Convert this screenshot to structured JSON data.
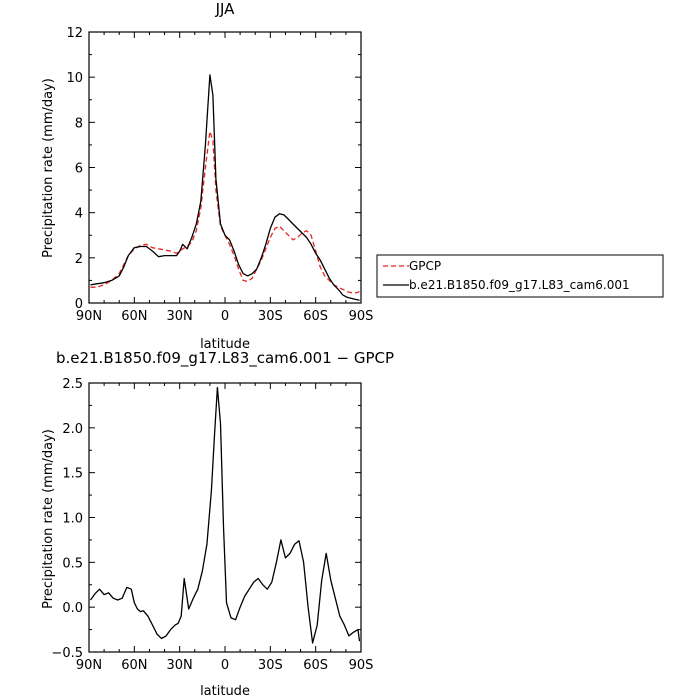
{
  "chart_data": [
    {
      "type": "line",
      "title": "JJA",
      "xlabel": "latitude",
      "ylabel": "Precipitation rate (mm/day)",
      "xlim": [
        90,
        -90
      ],
      "ylim": [
        0,
        12
      ],
      "xticks": [
        90,
        60,
        30,
        0,
        -30,
        -60,
        -90
      ],
      "xtick_labels": [
        "90N",
        "60N",
        "30N",
        "0",
        "30S",
        "60S",
        "90S"
      ],
      "yticks": [
        0,
        2,
        4,
        6,
        8,
        10,
        12
      ],
      "ytick_labels": [
        "0",
        "2",
        "4",
        "6",
        "8",
        "10",
        "12"
      ],
      "legend": "right",
      "series": [
        {
          "name": "GPCP",
          "color": "#e8251f",
          "dash": "dashed",
          "x": [
            89,
            85,
            80,
            75,
            70,
            67,
            64,
            60,
            56,
            52,
            48,
            44,
            40,
            36,
            32,
            30,
            28,
            25,
            22,
            19,
            16,
            13,
            10,
            8,
            6,
            3,
            0,
            -3,
            -6,
            -9,
            -12,
            -15,
            -18,
            -21,
            -24,
            -27,
            -30,
            -33,
            -36,
            -39,
            -42,
            -45,
            -48,
            -51,
            -54,
            -57,
            -60,
            -63,
            -66,
            -69,
            -72,
            -75,
            -78,
            -81,
            -84,
            -87,
            -89
          ],
          "y": [
            0.7,
            0.7,
            0.8,
            1.0,
            1.3,
            1.7,
            2.1,
            2.4,
            2.55,
            2.6,
            2.45,
            2.4,
            2.35,
            2.3,
            2.2,
            2.3,
            2.4,
            2.5,
            2.7,
            3.2,
            4.2,
            6.0,
            7.6,
            7.2,
            5.0,
            3.4,
            3.0,
            2.6,
            2.1,
            1.5,
            1.0,
            0.95,
            1.1,
            1.5,
            1.9,
            2.4,
            2.9,
            3.3,
            3.4,
            3.2,
            3.0,
            2.8,
            2.9,
            3.1,
            3.2,
            3.0,
            2.3,
            1.6,
            1.2,
            1.0,
            0.8,
            0.7,
            0.6,
            0.5,
            0.45,
            0.45,
            0.5
          ]
        },
        {
          "name": "b.e21.B1850.f09_g17.L83_cam6.001",
          "color": "#000000",
          "dash": "solid",
          "x": [
            89,
            85,
            80,
            75,
            70,
            67,
            64,
            60,
            56,
            52,
            48,
            44,
            40,
            36,
            32,
            30,
            28,
            25,
            22,
            19,
            16,
            13,
            10,
            8,
            6,
            3,
            0,
            -3,
            -6,
            -9,
            -12,
            -15,
            -18,
            -21,
            -24,
            -27,
            -30,
            -33,
            -36,
            -39,
            -42,
            -45,
            -48,
            -51,
            -54,
            -57,
            -60,
            -63,
            -66,
            -69,
            -72,
            -75,
            -78,
            -81,
            -84,
            -87,
            -89
          ],
          "y": [
            0.8,
            0.85,
            0.9,
            1.0,
            1.2,
            1.6,
            2.1,
            2.45,
            2.5,
            2.5,
            2.3,
            2.05,
            2.1,
            2.1,
            2.1,
            2.3,
            2.6,
            2.4,
            2.9,
            3.5,
            4.5,
            7.0,
            10.1,
            9.2,
            5.5,
            3.5,
            3.0,
            2.8,
            2.3,
            1.7,
            1.3,
            1.2,
            1.3,
            1.5,
            2.0,
            2.6,
            3.3,
            3.8,
            3.95,
            3.9,
            3.7,
            3.5,
            3.3,
            3.1,
            2.9,
            2.6,
            2.2,
            1.9,
            1.5,
            1.1,
            0.8,
            0.6,
            0.35,
            0.25,
            0.2,
            0.15,
            0.12
          ]
        }
      ]
    },
    {
      "type": "line",
      "title": "b.e21.B1850.f09_g17.L83_cam6.001 − GPCP",
      "xlabel": "latitude",
      "ylabel": "Precipitation rate (mm/day)",
      "xlim": [
        90,
        -90
      ],
      "ylim": [
        -0.5,
        2.5
      ],
      "xticks": [
        90,
        60,
        30,
        0,
        -30,
        -60,
        -90
      ],
      "xtick_labels": [
        "90N",
        "60N",
        "30N",
        "0",
        "30S",
        "60S",
        "90S"
      ],
      "yticks": [
        -0.5,
        0.0,
        0.5,
        1.0,
        1.5,
        2.0,
        2.5
      ],
      "ytick_labels": [
        "−0.5",
        "0.0",
        "0.5",
        "1.0",
        "1.5",
        "2.0",
        "2.5"
      ],
      "series": [
        {
          "color": "#000000",
          "dash": "solid",
          "x": [
            89,
            86,
            83,
            80,
            77,
            74,
            71,
            68,
            65,
            62,
            60,
            58,
            56,
            54,
            51,
            48,
            45,
            42,
            39,
            36,
            33,
            31,
            29,
            27,
            24,
            21,
            18,
            15,
            12,
            9,
            7,
            5,
            3,
            1,
            -1,
            -4,
            -7,
            -10,
            -13,
            -16,
            -19,
            -22,
            -25,
            -28,
            -31,
            -34,
            -37,
            -40,
            -43,
            -46,
            -49,
            -52,
            -55,
            -58,
            -61,
            -64,
            -67,
            -70,
            -73,
            -76,
            -79,
            -82,
            -85,
            -88,
            -89
          ],
          "y": [
            0.08,
            0.15,
            0.2,
            0.14,
            0.16,
            0.1,
            0.08,
            0.1,
            0.22,
            0.2,
            0.05,
            -0.02,
            -0.05,
            -0.04,
            -0.1,
            -0.2,
            -0.3,
            -0.35,
            -0.32,
            -0.25,
            -0.2,
            -0.18,
            -0.1,
            0.32,
            -0.02,
            0.1,
            0.2,
            0.4,
            0.7,
            1.3,
            1.9,
            2.45,
            2.05,
            0.9,
            0.05,
            -0.12,
            -0.14,
            0.0,
            0.12,
            0.2,
            0.28,
            0.32,
            0.25,
            0.2,
            0.28,
            0.5,
            0.75,
            0.55,
            0.6,
            0.7,
            0.74,
            0.5,
            0.0,
            -0.4,
            -0.2,
            0.3,
            0.6,
            0.3,
            0.1,
            -0.1,
            -0.2,
            -0.32,
            -0.28,
            -0.25,
            -0.38
          ]
        }
      ]
    }
  ]
}
